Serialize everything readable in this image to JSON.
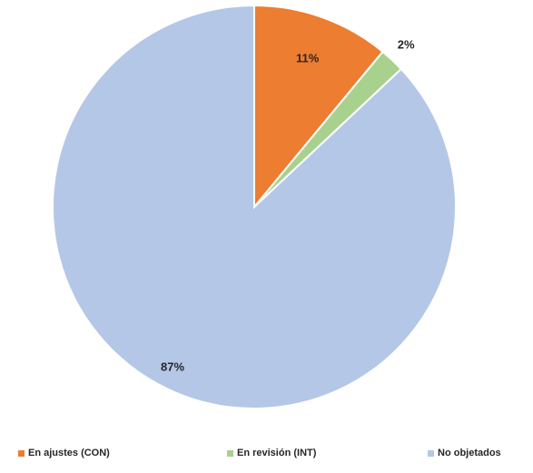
{
  "chart_data": {
    "type": "pie",
    "title": "",
    "start_angle_deg": 0,
    "direction": "clockwise",
    "categories": [
      "En ajustes (CON)",
      "En revisión (INT)",
      "No objetados"
    ],
    "values": [
      11,
      2,
      87
    ],
    "data_labels": [
      "11%",
      "2%",
      "87%"
    ],
    "colors": [
      "#ED7D31",
      "#A9D18E",
      "#B4C7E7"
    ],
    "legend_position": "bottom"
  }
}
